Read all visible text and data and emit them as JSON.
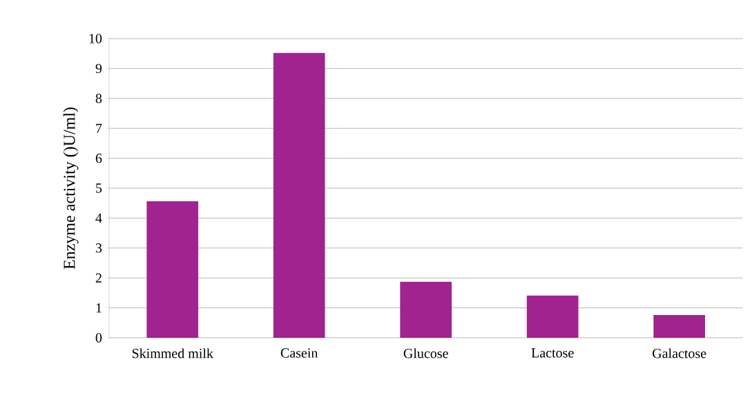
{
  "chart_data": {
    "type": "bar",
    "ylabel": "Enzyme activity ()U/ml)",
    "categories": [
      "Skimmed milk",
      "Casein",
      "Glucose",
      "Lactose",
      "Galactose"
    ],
    "values": [
      4.56,
      9.52,
      1.87,
      1.41,
      0.76
    ],
    "color": "#a0238f",
    "ylim": [
      0,
      10
    ],
    "yticks": [
      0,
      1,
      2,
      3,
      4,
      5,
      6,
      7,
      8,
      9,
      10
    ],
    "grid": "y"
  }
}
